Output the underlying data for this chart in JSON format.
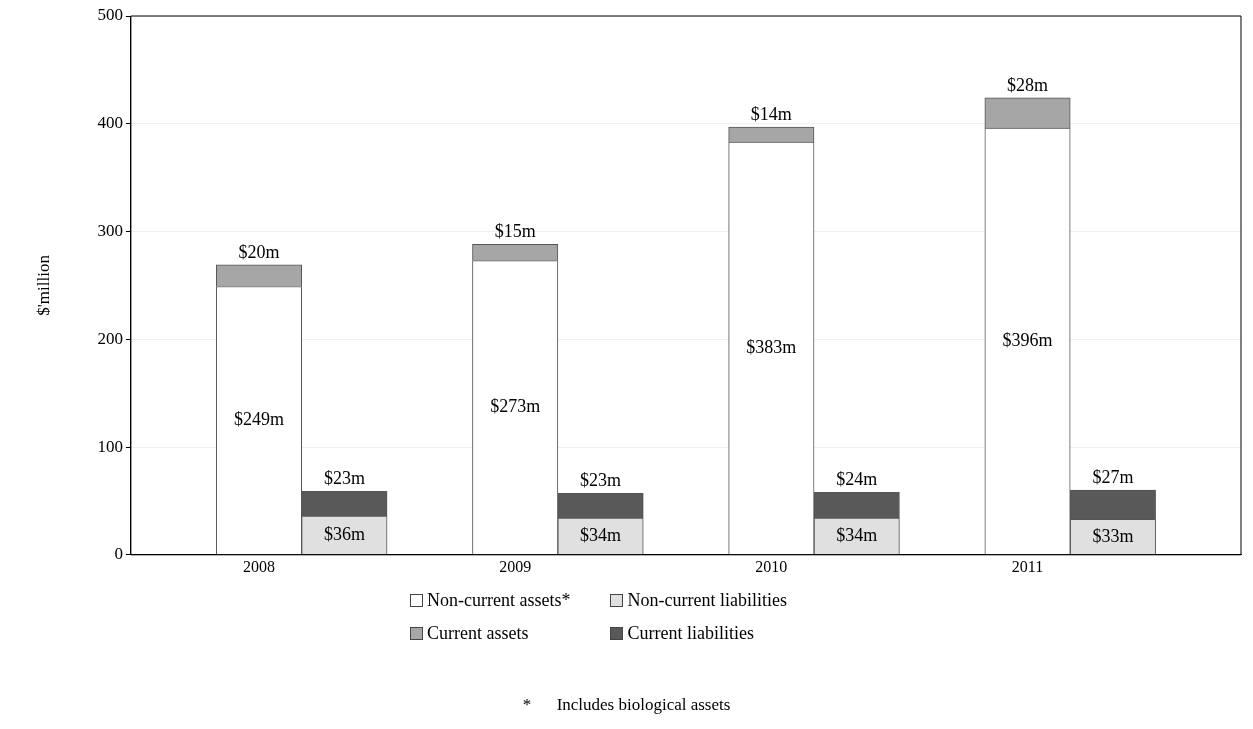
{
  "chart_data": {
    "type": "bar",
    "stacked": true,
    "ylabel": "$'million",
    "categories": [
      null,
      "2008",
      null,
      null,
      "2009",
      null,
      null,
      "2010",
      null,
      null,
      "2011",
      null,
      null
    ],
    "ylim": [
      0,
      500
    ],
    "yticks": [
      0,
      100,
      200,
      300,
      400,
      500
    ],
    "grid": "y",
    "legend": "bottom",
    "series": [
      {
        "name": "Non-current assets*",
        "color": "#ffffff",
        "values": [
          null,
          249,
          null,
          null,
          273,
          null,
          null,
          383,
          null,
          null,
          396,
          null,
          null
        ],
        "value_labels": [
          null,
          "$249m",
          null,
          null,
          "$273m",
          null,
          null,
          "$383m",
          null,
          null,
          "$396m",
          null,
          null
        ]
      },
      {
        "name": "Current assets",
        "color": "#a6a6a6",
        "values": [
          null,
          20,
          null,
          null,
          15,
          null,
          null,
          14,
          null,
          null,
          28,
          null,
          null
        ],
        "value_labels": [
          null,
          "$20m",
          null,
          null,
          "$15m",
          null,
          null,
          "$14m",
          null,
          null,
          "$28m",
          null,
          null
        ]
      },
      {
        "name": "Non-current liabilities",
        "color": "#e0e0e0",
        "values": [
          null,
          null,
          36,
          null,
          null,
          34,
          null,
          null,
          34,
          null,
          null,
          33,
          null
        ],
        "value_labels": [
          null,
          null,
          "$36m",
          null,
          null,
          "$34m",
          null,
          null,
          "$34m",
          null,
          null,
          "$33m",
          null
        ]
      },
      {
        "name": "Current liabilities",
        "color": "#595959",
        "values": [
          null,
          null,
          23,
          null,
          null,
          23,
          null,
          null,
          24,
          null,
          null,
          27,
          null
        ],
        "value_labels": [
          null,
          null,
          "$23m",
          null,
          null,
          "$23m",
          null,
          null,
          "$24m",
          null,
          null,
          "$27m",
          null
        ]
      }
    ],
    "annotations": [
      "*      Includes biological assets"
    ]
  }
}
